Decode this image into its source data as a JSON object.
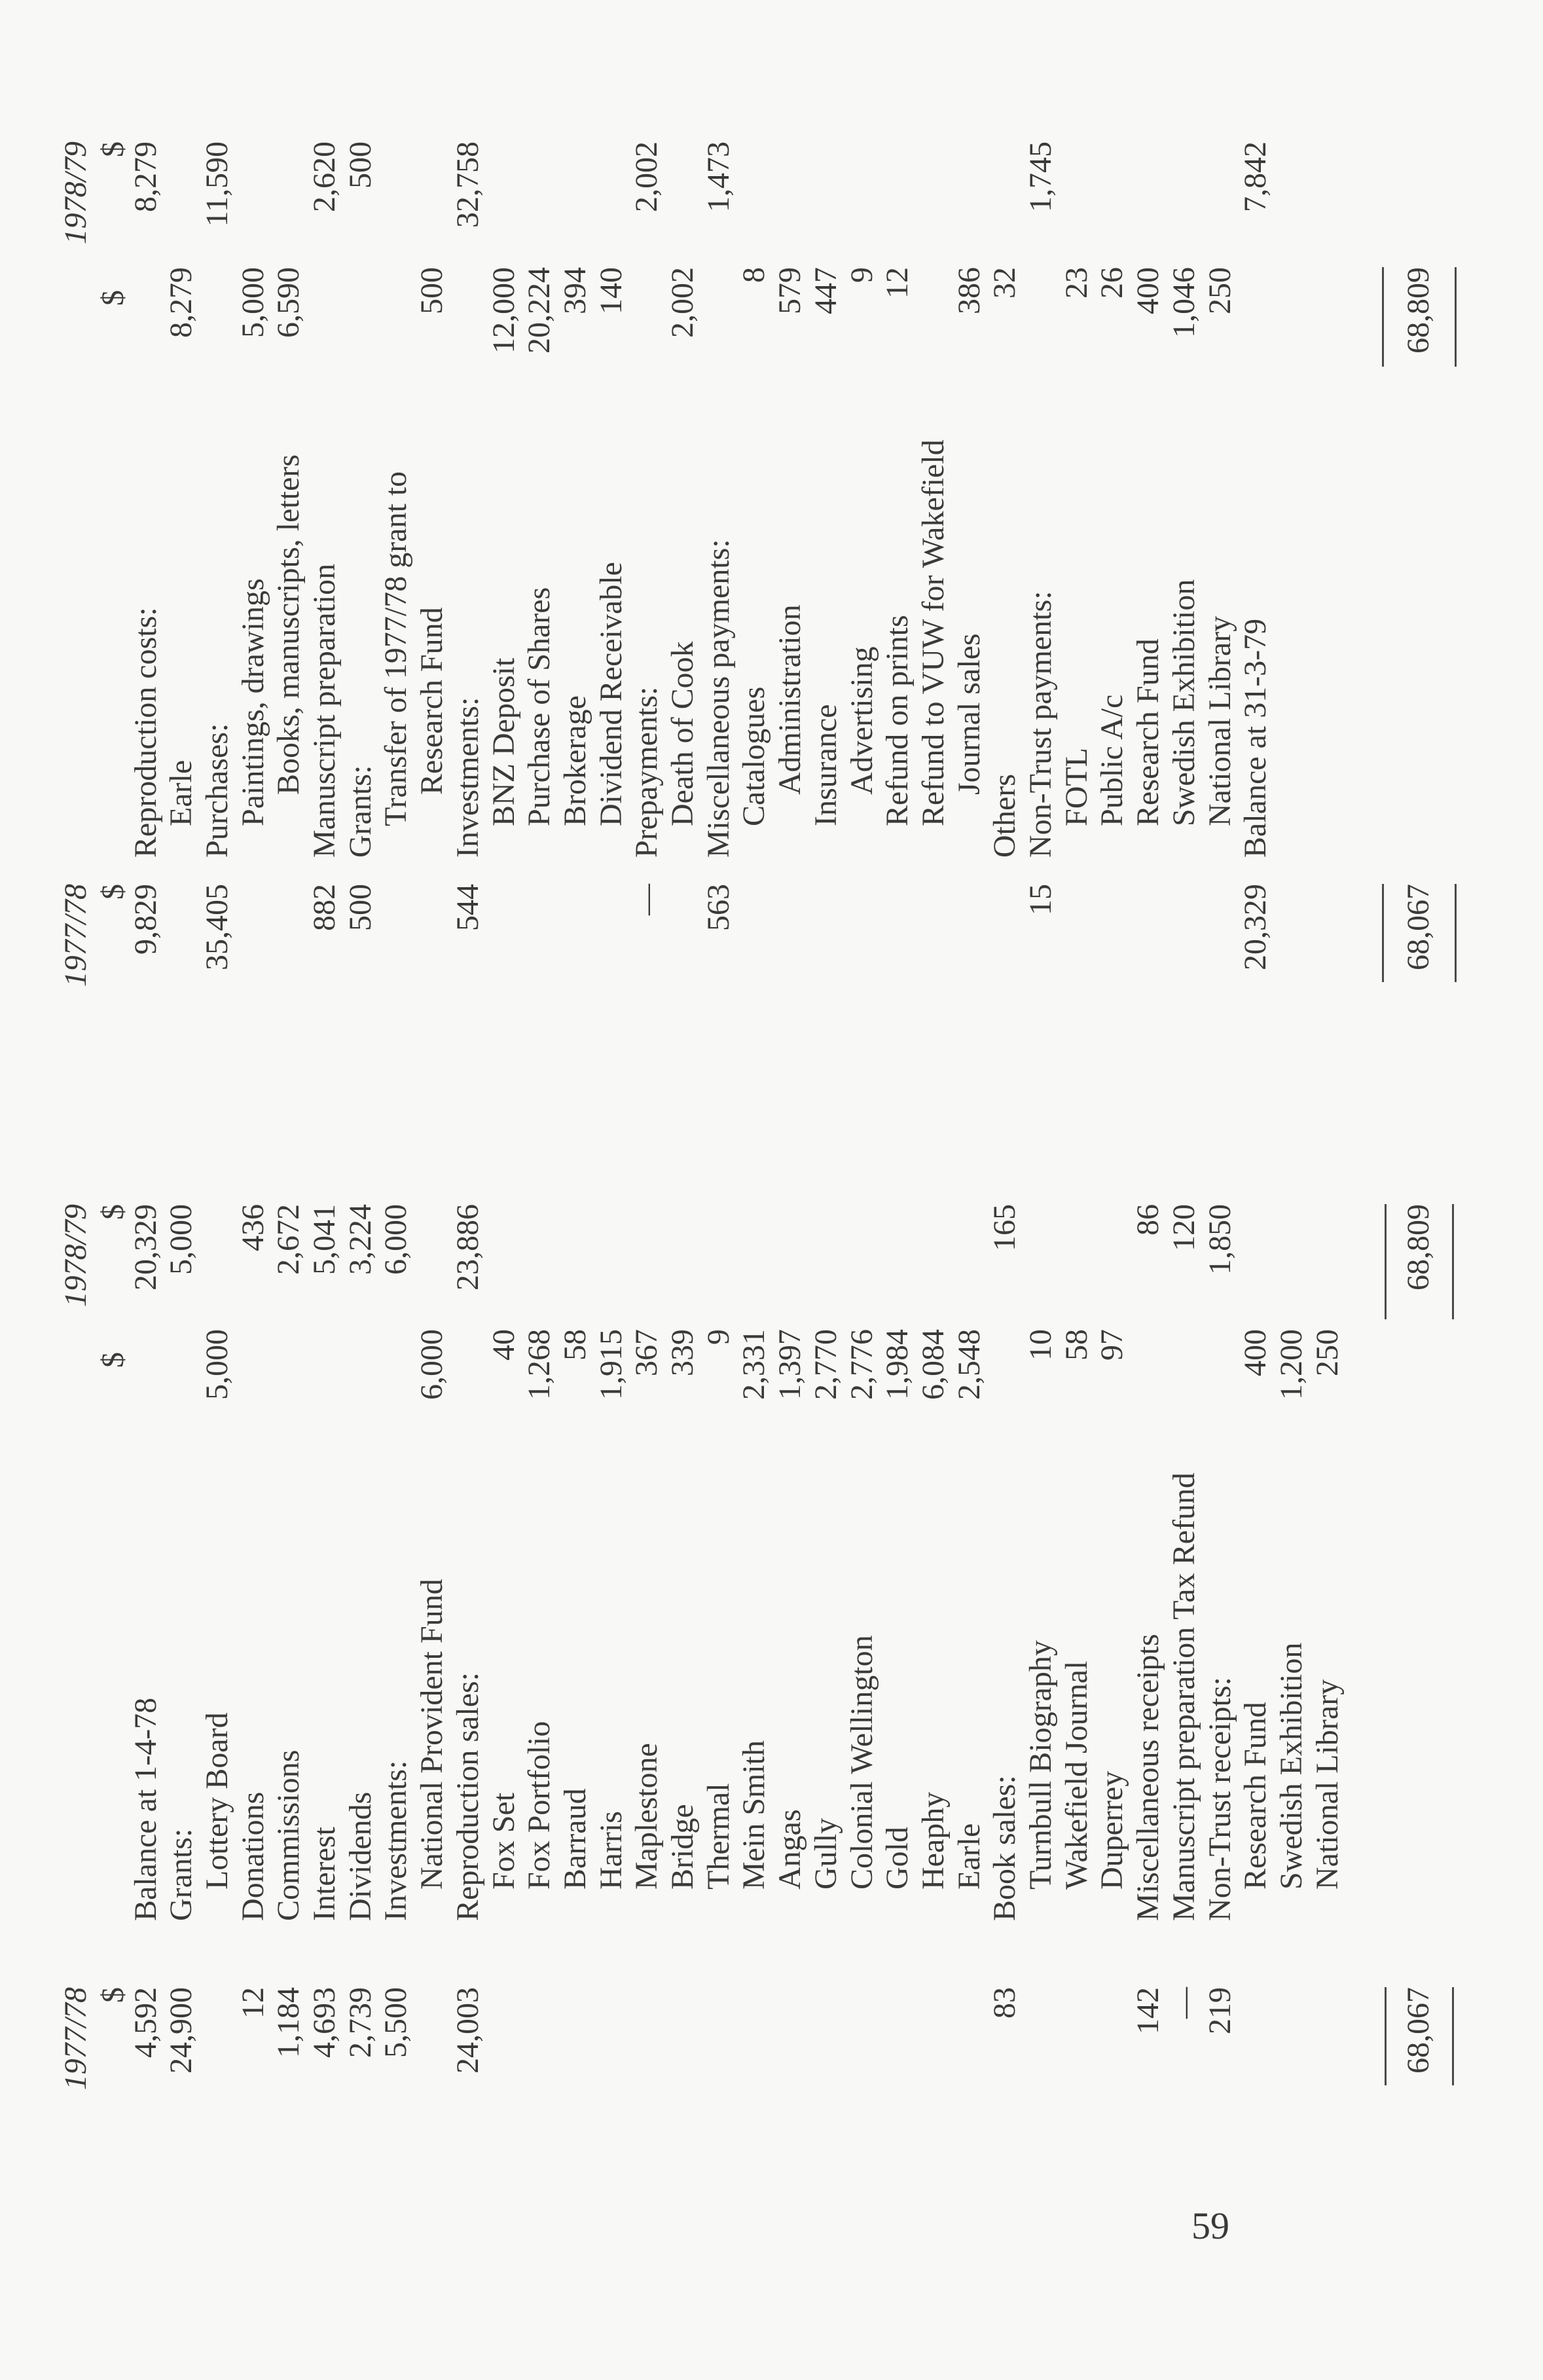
{
  "page_number": "59",
  "receipts": {
    "headers": {
      "prev_year": "1977/78",
      "curr_year": "1978/79",
      "currency": "$"
    },
    "rows": [
      {
        "label": "Balance at 1-4-78",
        "level": 0,
        "prev": "4,592",
        "sub": "",
        "curr": "20,329"
      },
      {
        "label": "Grants:",
        "level": 0,
        "prev": "24,900",
        "sub": "",
        "curr": "5,000"
      },
      {
        "label": "Lottery Board",
        "level": 1,
        "prev": "",
        "sub": "5,000",
        "curr": ""
      },
      {
        "label": "Donations",
        "level": 0,
        "prev": "12",
        "sub": "",
        "curr": "436"
      },
      {
        "label": "Commissions",
        "level": 0,
        "prev": "1,184",
        "sub": "",
        "curr": "2,672"
      },
      {
        "label": "Interest",
        "level": 0,
        "prev": "4,693",
        "sub": "",
        "curr": "5,041"
      },
      {
        "label": "Dividends",
        "level": 0,
        "prev": "2,739",
        "sub": "",
        "curr": "3,224"
      },
      {
        "label": "Investments:",
        "level": 0,
        "prev": "5,500",
        "sub": "",
        "curr": "6,000"
      },
      {
        "label": "National Provident Fund",
        "level": 1,
        "prev": "",
        "sub": "6,000",
        "curr": ""
      },
      {
        "label": "Reproduction sales:",
        "level": 0,
        "prev": "24,003",
        "sub": "",
        "curr": "23,886"
      },
      {
        "label": "Fox Set",
        "level": 1,
        "prev": "",
        "sub": "40",
        "curr": ""
      },
      {
        "label": "Fox Portfolio",
        "level": 1,
        "prev": "",
        "sub": "1,268",
        "curr": ""
      },
      {
        "label": "Barraud",
        "level": 1,
        "prev": "",
        "sub": "58",
        "curr": ""
      },
      {
        "label": "Harris",
        "level": 1,
        "prev": "",
        "sub": "1,915",
        "curr": ""
      },
      {
        "label": "Maplestone",
        "level": 1,
        "prev": "",
        "sub": "367",
        "curr": ""
      },
      {
        "label": "Bridge",
        "level": 1,
        "prev": "",
        "sub": "339",
        "curr": ""
      },
      {
        "label": "Thermal",
        "level": 1,
        "prev": "",
        "sub": "9",
        "curr": ""
      },
      {
        "label": "Mein Smith",
        "level": 1,
        "prev": "",
        "sub": "2,331",
        "curr": ""
      },
      {
        "label": "Angas",
        "level": 1,
        "prev": "",
        "sub": "1,397",
        "curr": ""
      },
      {
        "label": "Gully",
        "level": 1,
        "prev": "",
        "sub": "2,770",
        "curr": ""
      },
      {
        "label": "Colonial Wellington",
        "level": 1,
        "prev": "",
        "sub": "2,776",
        "curr": ""
      },
      {
        "label": "Gold",
        "level": 1,
        "prev": "",
        "sub": "1,984",
        "curr": ""
      },
      {
        "label": "Heaphy",
        "level": 1,
        "prev": "",
        "sub": "6,084",
        "curr": ""
      },
      {
        "label": "Earle",
        "level": 1,
        "prev": "",
        "sub": "2,548",
        "curr": ""
      },
      {
        "label": "Book sales:",
        "level": 0,
        "prev": "83",
        "sub": "",
        "curr": "165"
      },
      {
        "label": "Turnbull Biography",
        "level": 1,
        "prev": "",
        "sub": "10",
        "curr": ""
      },
      {
        "label": "Wakefield Journal",
        "level": 1,
        "prev": "",
        "sub": "58",
        "curr": ""
      },
      {
        "label": "Duperrey",
        "level": 1,
        "prev": "",
        "sub": "97",
        "curr": ""
      },
      {
        "label": "Miscellaneous receipts",
        "level": 0,
        "prev": "142",
        "sub": "",
        "curr": "86"
      },
      {
        "label": "Manuscript preparation Tax Refund",
        "level": 0,
        "prev": "—",
        "sub": "",
        "curr": "120"
      },
      {
        "label": "Non-Trust receipts:",
        "level": 0,
        "prev": "219",
        "sub": "",
        "curr": "1,850"
      },
      {
        "label": "Research Fund",
        "level": 1,
        "prev": "",
        "sub": "400",
        "curr": ""
      },
      {
        "label": "Swedish Exhibition",
        "level": 1,
        "prev": "",
        "sub": "1,200",
        "curr": ""
      },
      {
        "label": "National Library",
        "level": 1,
        "prev": "",
        "sub": "250",
        "curr": ""
      }
    ],
    "totals": {
      "prev": "68,067",
      "curr": "68,809"
    }
  },
  "payments": {
    "headers": {
      "prev_year": "1977/78",
      "curr_year": "1978/79",
      "currency": "$"
    },
    "rows": [
      {
        "label": "Reproduction costs:",
        "level": 0,
        "prev": "9,829",
        "sub": "",
        "curr": "8,279"
      },
      {
        "label": "Earle",
        "level": 1,
        "prev": "",
        "sub": "8,279",
        "curr": ""
      },
      {
        "label": "Purchases:",
        "level": 0,
        "prev": "35,405",
        "sub": "",
        "curr": "11,590"
      },
      {
        "label": "Paintings, drawings",
        "level": 1,
        "prev": "",
        "sub": "5,000",
        "curr": ""
      },
      {
        "label": "Books, manuscripts, letters",
        "level": 2,
        "prev": "",
        "sub": "6,590",
        "curr": ""
      },
      {
        "label": "Manuscript preparation",
        "level": 0,
        "prev": "882",
        "sub": "",
        "curr": "2,620"
      },
      {
        "label": "Grants:",
        "level": 0,
        "prev": "500",
        "sub": "",
        "curr": "500"
      },
      {
        "label": "Transfer of 1977/78 grant to",
        "level": 1,
        "prev": "",
        "sub": "",
        "curr": ""
      },
      {
        "label": "Research Fund",
        "level": 2,
        "prev": "",
        "sub": "500",
        "curr": ""
      },
      {
        "label": "Investments:",
        "level": 0,
        "prev": "544",
        "sub": "",
        "curr": "32,758"
      },
      {
        "label": "BNZ Deposit",
        "level": 1,
        "prev": "",
        "sub": "12,000",
        "curr": ""
      },
      {
        "label": "Purchase of Shares",
        "level": 1,
        "prev": "",
        "sub": "20,224",
        "curr": ""
      },
      {
        "label": "Brokerage",
        "level": 1,
        "prev": "",
        "sub": "394",
        "curr": ""
      },
      {
        "label": "Dividend Receivable",
        "level": 1,
        "prev": "",
        "sub": "140",
        "curr": ""
      },
      {
        "label": "Prepayments:",
        "level": 0,
        "prev": "—",
        "sub": "",
        "curr": "2,002"
      },
      {
        "label": "Death of Cook",
        "level": 1,
        "prev": "",
        "sub": "2,002",
        "curr": ""
      },
      {
        "label": "Miscellaneous payments:",
        "level": 0,
        "prev": "563",
        "sub": "",
        "curr": "1,473"
      },
      {
        "label": "Catalogues",
        "level": 1,
        "prev": "",
        "sub": "8",
        "curr": ""
      },
      {
        "label": "Administration",
        "level": 2,
        "prev": "",
        "sub": "579",
        "curr": ""
      },
      {
        "label": "Insurance",
        "level": 1,
        "prev": "",
        "sub": "447",
        "curr": ""
      },
      {
        "label": "Advertising",
        "level": 2,
        "prev": "",
        "sub": "9",
        "curr": ""
      },
      {
        "label": "Refund on prints",
        "level": 1,
        "prev": "",
        "sub": "12",
        "curr": ""
      },
      {
        "label": "Refund to VUW for Wakefield",
        "level": 1,
        "prev": "",
        "sub": "",
        "curr": ""
      },
      {
        "label": "Journal sales",
        "level": 2,
        "prev": "",
        "sub": "386",
        "curr": ""
      },
      {
        "label": "Others",
        "level": 0,
        "prev": "",
        "sub": "32",
        "curr": ""
      },
      {
        "label": "Non-Trust payments:",
        "level": 0,
        "prev": "15",
        "sub": "",
        "curr": "1,745"
      },
      {
        "label": "FOTL",
        "level": 1,
        "prev": "",
        "sub": "23",
        "curr": ""
      },
      {
        "label": "Public A/c",
        "level": 1,
        "prev": "",
        "sub": "26",
        "curr": ""
      },
      {
        "label": "Research Fund",
        "level": 1,
        "prev": "",
        "sub": "400",
        "curr": ""
      },
      {
        "label": "Swedish Exhibition",
        "level": 1,
        "prev": "",
        "sub": "1,046",
        "curr": ""
      },
      {
        "label": "National Library",
        "level": 1,
        "prev": "",
        "sub": "250",
        "curr": ""
      },
      {
        "label": "Balance at 31-3-79",
        "level": 0,
        "prev": "20,329",
        "sub": "",
        "curr": "7,842"
      }
    ],
    "totals": {
      "prev": "68,067",
      "sub": "68,809"
    }
  }
}
